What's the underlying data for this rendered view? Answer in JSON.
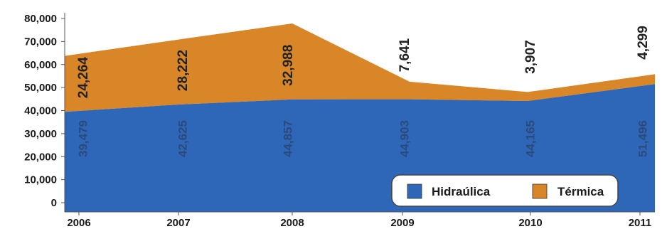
{
  "chart_data": {
    "type": "area",
    "stacked": true,
    "categories": [
      "2006",
      "2007",
      "2008",
      "2009",
      "2010",
      "2011"
    ],
    "series": [
      {
        "name": "Hidraúlica",
        "color": "#2e67b8",
        "values": [
          39479,
          42625,
          44857,
          44903,
          44165,
          51496
        ],
        "labels": [
          "39,479",
          "42,625",
          "44,857",
          "44,903",
          "44,165",
          "51,496"
        ]
      },
      {
        "name": "Térmica",
        "color": "#d98628",
        "values": [
          24264,
          28222,
          32988,
          7641,
          3907,
          4299
        ],
        "labels": [
          "24,264",
          "28,222",
          "32,988",
          "7,641",
          "3,907",
          "4,299"
        ]
      }
    ],
    "ylim": [
      0,
      80000
    ],
    "yticks": [
      0,
      10000,
      20000,
      30000,
      40000,
      50000,
      60000,
      70000,
      80000
    ],
    "ytick_labels": [
      "0",
      "10,000",
      "20,000",
      "30,000",
      "40,000",
      "50,000",
      "60,000",
      "70,000",
      "80,000"
    ],
    "grid": false,
    "legend_position": "bottom-right",
    "title": "",
    "xlabel": "",
    "ylabel": ""
  }
}
